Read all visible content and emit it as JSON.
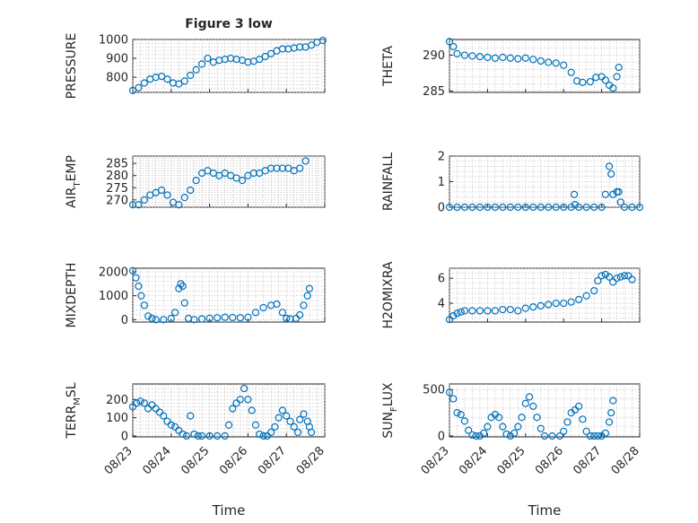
{
  "figure": {
    "title": "Figure 3 low",
    "xlabel": "Time"
  },
  "colors": {
    "marker": "#0072bd",
    "axis": "#262626",
    "grid": "#b8b8b8"
  },
  "chart_data": [
    {
      "type": "scatter",
      "id": "pressure",
      "title": "Figure 3 low",
      "ylabel_main": "PRESSURE",
      "ylabel_sub": "",
      "ylabel_tail": "",
      "ylim": [
        720,
        1000
      ],
      "yticks": [
        800,
        900,
        1000
      ],
      "points": [
        [
          0.0,
          730
        ],
        [
          0.15,
          745
        ],
        [
          0.3,
          770
        ],
        [
          0.45,
          790
        ],
        [
          0.6,
          800
        ],
        [
          0.75,
          805
        ],
        [
          0.9,
          790
        ],
        [
          1.05,
          770
        ],
        [
          1.2,
          765
        ],
        [
          1.35,
          780
        ],
        [
          1.5,
          810
        ],
        [
          1.65,
          840
        ],
        [
          1.8,
          870
        ],
        [
          1.95,
          900
        ],
        [
          2.1,
          880
        ],
        [
          2.25,
          890
        ],
        [
          2.4,
          895
        ],
        [
          2.55,
          900
        ],
        [
          2.7,
          895
        ],
        [
          2.85,
          890
        ],
        [
          3.0,
          880
        ],
        [
          3.15,
          885
        ],
        [
          3.3,
          895
        ],
        [
          3.45,
          910
        ],
        [
          3.6,
          925
        ],
        [
          3.75,
          940
        ],
        [
          3.9,
          950
        ],
        [
          4.05,
          950
        ],
        [
          4.2,
          955
        ],
        [
          4.35,
          960
        ],
        [
          4.5,
          960
        ],
        [
          4.65,
          970
        ],
        [
          4.8,
          985
        ],
        [
          4.95,
          995
        ]
      ]
    },
    {
      "type": "scatter",
      "id": "theta",
      "title": "",
      "ylabel_main": "THETA",
      "ylabel_sub": "",
      "ylabel_tail": "",
      "ylim": [
        284.8,
        292.2
      ],
      "yticks": [
        285,
        290
      ],
      "points": [
        [
          0.0,
          291.9
        ],
        [
          0.1,
          291.2
        ],
        [
          0.2,
          290.2
        ],
        [
          0.4,
          290.0
        ],
        [
          0.6,
          289.9
        ],
        [
          0.8,
          289.8
        ],
        [
          1.0,
          289.7
        ],
        [
          1.2,
          289.6
        ],
        [
          1.4,
          289.7
        ],
        [
          1.6,
          289.6
        ],
        [
          1.8,
          289.5
        ],
        [
          2.0,
          289.6
        ],
        [
          2.2,
          289.4
        ],
        [
          2.4,
          289.2
        ],
        [
          2.6,
          289.0
        ],
        [
          2.8,
          288.9
        ],
        [
          3.0,
          288.6
        ],
        [
          3.2,
          287.6
        ],
        [
          3.35,
          286.4
        ],
        [
          3.5,
          286.2
        ],
        [
          3.7,
          286.3
        ],
        [
          3.85,
          286.9
        ],
        [
          4.0,
          287.0
        ],
        [
          4.1,
          286.5
        ],
        [
          4.2,
          285.8
        ],
        [
          4.3,
          285.4
        ],
        [
          4.4,
          287.0
        ],
        [
          4.45,
          288.3
        ]
      ]
    },
    {
      "type": "scatter",
      "id": "air_temp",
      "title": "",
      "ylabel_main": "AIR",
      "ylabel_sub": "T",
      "ylabel_tail": "EMP",
      "ylim": [
        267,
        288
      ],
      "yticks": [
        270,
        275,
        280,
        285
      ],
      "points": [
        [
          0.0,
          268
        ],
        [
          0.15,
          268
        ],
        [
          0.3,
          270
        ],
        [
          0.45,
          272
        ],
        [
          0.6,
          273
        ],
        [
          0.75,
          274
        ],
        [
          0.9,
          272
        ],
        [
          1.05,
          269
        ],
        [
          1.2,
          268
        ],
        [
          1.35,
          271
        ],
        [
          1.5,
          274
        ],
        [
          1.65,
          278
        ],
        [
          1.8,
          281
        ],
        [
          1.95,
          282
        ],
        [
          2.1,
          281
        ],
        [
          2.25,
          280
        ],
        [
          2.4,
          281
        ],
        [
          2.55,
          280
        ],
        [
          2.7,
          279
        ],
        [
          2.85,
          278
        ],
        [
          3.0,
          280
        ],
        [
          3.15,
          281
        ],
        [
          3.3,
          281
        ],
        [
          3.45,
          282
        ],
        [
          3.6,
          283
        ],
        [
          3.75,
          283
        ],
        [
          3.9,
          283
        ],
        [
          4.05,
          283
        ],
        [
          4.2,
          282
        ],
        [
          4.35,
          283
        ],
        [
          4.5,
          286
        ]
      ]
    },
    {
      "type": "scatter",
      "id": "rainfall",
      "title": "",
      "ylabel_main": "RAINFALL",
      "ylabel_sub": "",
      "ylabel_tail": "",
      "ylim": [
        0,
        2
      ],
      "yticks": [
        0,
        1,
        2
      ],
      "points": [
        [
          0.0,
          0
        ],
        [
          0.2,
          0
        ],
        [
          0.4,
          0
        ],
        [
          0.6,
          0
        ],
        [
          0.8,
          0
        ],
        [
          1.0,
          0
        ],
        [
          1.2,
          0
        ],
        [
          1.4,
          0
        ],
        [
          1.6,
          0
        ],
        [
          1.8,
          0
        ],
        [
          2.0,
          0
        ],
        [
          2.2,
          0
        ],
        [
          2.4,
          0
        ],
        [
          2.6,
          0
        ],
        [
          2.8,
          0
        ],
        [
          3.0,
          0
        ],
        [
          3.2,
          0
        ],
        [
          3.28,
          0.5
        ],
        [
          3.3,
          0.1
        ],
        [
          3.4,
          0
        ],
        [
          3.6,
          0
        ],
        [
          3.8,
          0
        ],
        [
          4.0,
          0
        ],
        [
          4.1,
          0.5
        ],
        [
          4.2,
          1.6
        ],
        [
          4.25,
          1.3
        ],
        [
          4.3,
          0.5
        ],
        [
          4.4,
          0.6
        ],
        [
          4.45,
          0.6
        ],
        [
          4.5,
          0.2
        ],
        [
          4.6,
          0
        ],
        [
          4.8,
          0
        ],
        [
          5.0,
          0
        ]
      ]
    },
    {
      "type": "scatter",
      "id": "mixdepth",
      "title": "",
      "ylabel_main": "MIXDEPTH",
      "ylabel_sub": "",
      "ylabel_tail": "",
      "ylim": [
        -100,
        2150
      ],
      "yticks": [
        0,
        1000,
        2000
      ],
      "points": [
        [
          0.0,
          2050
        ],
        [
          0.08,
          1750
        ],
        [
          0.15,
          1400
        ],
        [
          0.22,
          1000
        ],
        [
          0.3,
          600
        ],
        [
          0.4,
          150
        ],
        [
          0.5,
          50
        ],
        [
          0.6,
          0
        ],
        [
          0.8,
          0
        ],
        [
          1.0,
          50
        ],
        [
          1.1,
          300
        ],
        [
          1.2,
          1300
        ],
        [
          1.25,
          1500
        ],
        [
          1.3,
          1400
        ],
        [
          1.35,
          700
        ],
        [
          1.45,
          50
        ],
        [
          1.6,
          0
        ],
        [
          1.8,
          30
        ],
        [
          2.0,
          60
        ],
        [
          2.2,
          80
        ],
        [
          2.4,
          100
        ],
        [
          2.6,
          90
        ],
        [
          2.8,
          80
        ],
        [
          3.0,
          100
        ],
        [
          3.2,
          300
        ],
        [
          3.4,
          500
        ],
        [
          3.6,
          600
        ],
        [
          3.75,
          650
        ],
        [
          3.9,
          300
        ],
        [
          4.0,
          50
        ],
        [
          4.1,
          30
        ],
        [
          4.25,
          50
        ],
        [
          4.35,
          200
        ],
        [
          4.45,
          600
        ],
        [
          4.55,
          1000
        ],
        [
          4.6,
          1300
        ]
      ]
    },
    {
      "type": "scatter",
      "id": "h2omixra",
      "title": "",
      "ylabel_main": "H2OMIXRA",
      "ylabel_sub": "",
      "ylabel_tail": "",
      "ylim": [
        2.5,
        6.8
      ],
      "yticks": [
        4,
        6
      ],
      "points": [
        [
          0.0,
          2.7
        ],
        [
          0.1,
          3.0
        ],
        [
          0.2,
          3.2
        ],
        [
          0.3,
          3.3
        ],
        [
          0.4,
          3.4
        ],
        [
          0.6,
          3.4
        ],
        [
          0.8,
          3.4
        ],
        [
          1.0,
          3.4
        ],
        [
          1.2,
          3.4
        ],
        [
          1.4,
          3.5
        ],
        [
          1.6,
          3.5
        ],
        [
          1.8,
          3.4
        ],
        [
          2.0,
          3.6
        ],
        [
          2.2,
          3.7
        ],
        [
          2.4,
          3.8
        ],
        [
          2.6,
          3.9
        ],
        [
          2.8,
          4.0
        ],
        [
          3.0,
          4.0
        ],
        [
          3.2,
          4.1
        ],
        [
          3.4,
          4.3
        ],
        [
          3.6,
          4.6
        ],
        [
          3.8,
          5.0
        ],
        [
          3.9,
          5.8
        ],
        [
          4.0,
          6.2
        ],
        [
          4.1,
          6.3
        ],
        [
          4.2,
          6.1
        ],
        [
          4.3,
          5.7
        ],
        [
          4.4,
          6.0
        ],
        [
          4.5,
          6.1
        ],
        [
          4.6,
          6.2
        ],
        [
          4.7,
          6.2
        ],
        [
          4.8,
          5.9
        ]
      ]
    },
    {
      "type": "scatter",
      "id": "terr_msl",
      "title": "",
      "ylabel_main": "TERR",
      "ylabel_sub": "M",
      "ylabel_tail": "SL",
      "ylim": [
        -5,
        285
      ],
      "yticks": [
        0,
        100,
        200
      ],
      "points": [
        [
          0.0,
          160
        ],
        [
          0.1,
          180
        ],
        [
          0.2,
          190
        ],
        [
          0.3,
          180
        ],
        [
          0.4,
          150
        ],
        [
          0.5,
          170
        ],
        [
          0.6,
          150
        ],
        [
          0.7,
          130
        ],
        [
          0.8,
          110
        ],
        [
          0.9,
          80
        ],
        [
          1.0,
          60
        ],
        [
          1.1,
          50
        ],
        [
          1.2,
          30
        ],
        [
          1.3,
          10
        ],
        [
          1.4,
          0
        ],
        [
          1.5,
          110
        ],
        [
          1.6,
          10
        ],
        [
          1.7,
          0
        ],
        [
          1.8,
          0
        ],
        [
          2.0,
          0
        ],
        [
          2.2,
          0
        ],
        [
          2.4,
          0
        ],
        [
          2.5,
          60
        ],
        [
          2.6,
          150
        ],
        [
          2.7,
          180
        ],
        [
          2.8,
          200
        ],
        [
          2.9,
          260
        ],
        [
          3.0,
          200
        ],
        [
          3.1,
          140
        ],
        [
          3.2,
          60
        ],
        [
          3.3,
          10
        ],
        [
          3.4,
          0
        ],
        [
          3.5,
          0
        ],
        [
          3.6,
          20
        ],
        [
          3.7,
          50
        ],
        [
          3.8,
          100
        ],
        [
          3.9,
          140
        ],
        [
          4.0,
          110
        ],
        [
          4.1,
          80
        ],
        [
          4.2,
          50
        ],
        [
          4.3,
          20
        ],
        [
          4.35,
          90
        ],
        [
          4.45,
          120
        ],
        [
          4.55,
          80
        ],
        [
          4.6,
          50
        ],
        [
          4.65,
          20
        ]
      ]
    },
    {
      "type": "scatter",
      "id": "sun_flux",
      "title": "",
      "ylabel_main": "SUN",
      "ylabel_sub": "F",
      "ylabel_tail": "LUX",
      "ylim": [
        -10,
        560
      ],
      "yticks": [
        0,
        500
      ],
      "points": [
        [
          0.0,
          470
        ],
        [
          0.1,
          400
        ],
        [
          0.2,
          250
        ],
        [
          0.3,
          230
        ],
        [
          0.4,
          160
        ],
        [
          0.5,
          60
        ],
        [
          0.6,
          10
        ],
        [
          0.7,
          0
        ],
        [
          0.8,
          0
        ],
        [
          0.9,
          30
        ],
        [
          1.0,
          100
        ],
        [
          1.1,
          200
        ],
        [
          1.2,
          230
        ],
        [
          1.3,
          200
        ],
        [
          1.4,
          100
        ],
        [
          1.5,
          20
        ],
        [
          1.6,
          0
        ],
        [
          1.7,
          30
        ],
        [
          1.8,
          100
        ],
        [
          1.9,
          200
        ],
        [
          2.0,
          350
        ],
        [
          2.1,
          420
        ],
        [
          2.2,
          320
        ],
        [
          2.3,
          200
        ],
        [
          2.4,
          80
        ],
        [
          2.5,
          0
        ],
        [
          2.7,
          0
        ],
        [
          2.9,
          0
        ],
        [
          3.0,
          50
        ],
        [
          3.1,
          150
        ],
        [
          3.2,
          250
        ],
        [
          3.3,
          280
        ],
        [
          3.4,
          320
        ],
        [
          3.5,
          180
        ],
        [
          3.6,
          50
        ],
        [
          3.7,
          0
        ],
        [
          3.8,
          0
        ],
        [
          3.9,
          0
        ],
        [
          4.0,
          0
        ],
        [
          4.1,
          30
        ],
        [
          4.2,
          150
        ],
        [
          4.25,
          250
        ],
        [
          4.3,
          380
        ]
      ]
    }
  ],
  "x_axis": {
    "ticks": [
      "08/23",
      "08/24",
      "08/25",
      "08/26",
      "08/27",
      "08/28"
    ]
  }
}
